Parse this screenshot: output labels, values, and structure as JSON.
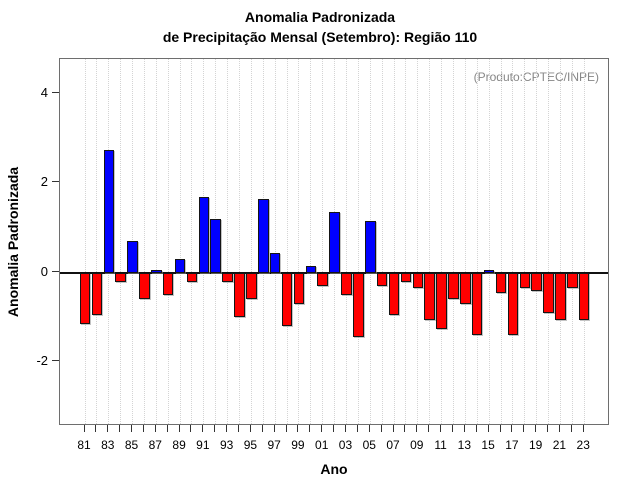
{
  "header": {
    "title_line1": "Anomalia Padronizada",
    "title_line2": "de Precipitação Mensal (Setembro): Região 110"
  },
  "annotation": {
    "produto": "(Produto:CPTEC/INPE)"
  },
  "axes": {
    "y_label": "Anomalia Padronizada",
    "x_label": "Ano"
  },
  "chart_data": {
    "type": "bar",
    "title": "Anomalia Padronizada de Precipitação Mensal (Setembro): Região 110",
    "xlabel": "Ano",
    "ylabel": "Anomalia Padronizada",
    "annotation": "(Produto:CPTEC/INPE)",
    "categories": [
      "81",
      "82",
      "83",
      "84",
      "85",
      "86",
      "87",
      "88",
      "89",
      "90",
      "91",
      "92",
      "93",
      "94",
      "95",
      "96",
      "97",
      "98",
      "99",
      "00",
      "01",
      "02",
      "03",
      "04",
      "05",
      "06",
      "07",
      "08",
      "09",
      "10",
      "11",
      "12",
      "13",
      "14",
      "15",
      "16",
      "17",
      "18",
      "19",
      "20",
      "21",
      "22",
      "23"
    ],
    "values": [
      -1.15,
      -0.95,
      2.75,
      -0.2,
      0.7,
      -0.6,
      0.05,
      -0.5,
      0.3,
      -0.2,
      1.7,
      1.2,
      -0.2,
      -1.0,
      -0.6,
      1.65,
      0.45,
      -1.2,
      -0.7,
      0.15,
      -0.3,
      1.35,
      -0.5,
      -1.45,
      1.15,
      -0.3,
      -0.95,
      -0.2,
      -0.35,
      -1.05,
      -1.25,
      -0.6,
      -0.7,
      -1.4,
      0.07,
      -0.45,
      -1.4,
      -0.35,
      -0.4,
      -0.9,
      -1.05,
      -0.35,
      -1.05
    ],
    "xtick_labels_shown": [
      "81",
      "83",
      "85",
      "87",
      "89",
      "91",
      "93",
      "95",
      "97",
      "99",
      "01",
      "03",
      "05",
      "07",
      "09",
      "11",
      "13",
      "15",
      "17",
      "19",
      "21",
      "23"
    ],
    "yticks": [
      -2,
      0,
      2,
      4
    ],
    "ylim": [
      -3.43,
      4.78
    ],
    "grid": "vertical-dotted",
    "legend": "none",
    "colors": {
      "positive_bar": "#0000ff",
      "negative_bar": "#ff0000",
      "bar_border": "#151515",
      "gridline": "#d4d4d4",
      "frame": "#6e6e6e",
      "zero_line": "#111111",
      "annotation_text": "#878787"
    }
  }
}
